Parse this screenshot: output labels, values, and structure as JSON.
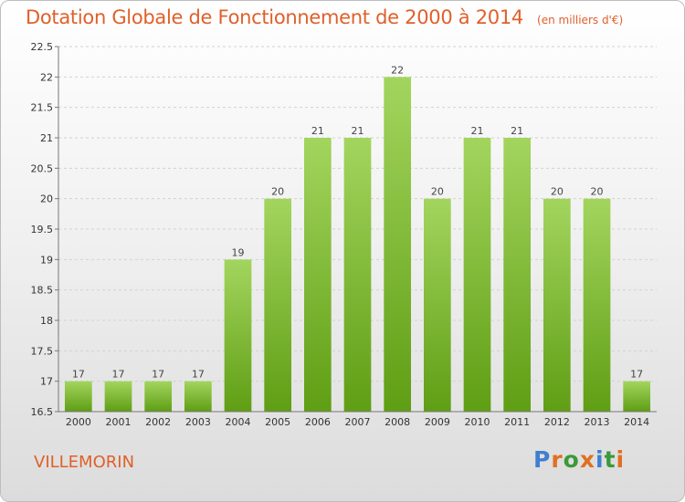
{
  "header": {
    "title": "Dotation Globale de Fonctionnement de 2000 à 2014",
    "unit": "(en milliers d'€)"
  },
  "footer": {
    "commune": "VILLEMORIN",
    "logo": "Proxiti"
  },
  "colors": {
    "title": "#e0602a",
    "bar_top": "#a3d55e",
    "bar_bottom": "#5f9e14",
    "logo_letters": [
      "#3f7fd0",
      "#e07020",
      "#3a9a3a",
      "#e07020",
      "#3f7fd0",
      "#3a9a3a",
      "#e07020"
    ]
  },
  "chart_data": {
    "type": "bar",
    "title": "Dotation Globale de Fonctionnement de 2000 à 2014",
    "xlabel": "",
    "ylabel": "",
    "ylim": [
      16.5,
      22.5
    ],
    "yticks": [
      16.5,
      17,
      17.5,
      18,
      18.5,
      19,
      19.5,
      20,
      20.5,
      21,
      21.5,
      22,
      22.5
    ],
    "grid": true,
    "categories": [
      "2000",
      "2001",
      "2002",
      "2003",
      "2004",
      "2005",
      "2006",
      "2007",
      "2008",
      "2009",
      "2010",
      "2011",
      "2012",
      "2013",
      "2014"
    ],
    "values": [
      17,
      17,
      17,
      17,
      19,
      20,
      21,
      21,
      22,
      20,
      21,
      21,
      20,
      20,
      17
    ]
  }
}
